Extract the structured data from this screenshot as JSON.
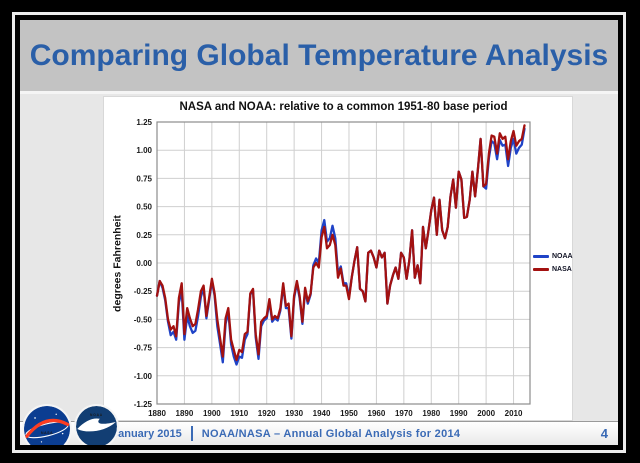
{
  "slide": {
    "title": "Comparing Global Temperature Analysis"
  },
  "footer": {
    "date": "January 2015",
    "divider": "|",
    "text": "NOAA/NASA – Annual  Global  Analysis  for  2014",
    "page": "4"
  },
  "logos": {
    "nasa_text": "NASA",
    "noaa_text": "NOAA"
  },
  "colors": {
    "title_blue": "#2a5fa8",
    "footer_blue": "#3a6ab5",
    "noaa_line": "#1f43c7",
    "nasa_line": "#a31110",
    "grid": "#cfcfcf",
    "plot_border": "#8c8c8c",
    "slide_gray": "#c3c3c3",
    "body_gray": "#e7e7e7"
  },
  "chart_data": {
    "type": "line",
    "title": "NASA and NOAA: relative to a common 1951-80 base period",
    "xlabel": "",
    "ylabel": "degrees Fahrenheit",
    "x_start": 1880,
    "x_end": 2014,
    "xlim": [
      1880,
      2016
    ],
    "ylim": [
      -1.25,
      1.25
    ],
    "x_ticks": [
      1880,
      1890,
      1900,
      1910,
      1920,
      1930,
      1940,
      1950,
      1960,
      1970,
      1980,
      1990,
      2000,
      2010
    ],
    "y_ticks": [
      1.25,
      1.0,
      0.75,
      0.5,
      0.25,
      0.0,
      -0.25,
      -0.5,
      -0.75,
      -1.0,
      -1.25
    ],
    "grid": true,
    "legend_position": "right",
    "series": [
      {
        "name": "NOAA",
        "color": "#1f43c7",
        "values": [
          -0.29,
          -0.16,
          -0.22,
          -0.33,
          -0.52,
          -0.64,
          -0.61,
          -0.68,
          -0.35,
          -0.25,
          -0.68,
          -0.47,
          -0.56,
          -0.62,
          -0.6,
          -0.47,
          -0.3,
          -0.22,
          -0.49,
          -0.33,
          -0.16,
          -0.29,
          -0.56,
          -0.72,
          -0.88,
          -0.54,
          -0.43,
          -0.72,
          -0.83,
          -0.9,
          -0.83,
          -0.84,
          -0.68,
          -0.63,
          -0.28,
          -0.24,
          -0.66,
          -0.85,
          -0.56,
          -0.51,
          -0.49,
          -0.34,
          -0.52,
          -0.49,
          -0.51,
          -0.42,
          -0.2,
          -0.4,
          -0.4,
          -0.67,
          -0.31,
          -0.18,
          -0.31,
          -0.54,
          -0.24,
          -0.36,
          -0.28,
          -0.02,
          0.04,
          0.0,
          0.29,
          0.38,
          0.19,
          0.22,
          0.33,
          0.22,
          -0.09,
          -0.03,
          -0.18,
          -0.18,
          -0.3,
          -0.13,
          0.02,
          0.14,
          -0.23,
          -0.25,
          -0.34,
          0.09,
          0.11,
          0.05,
          -0.04,
          0.11,
          0.05,
          0.09,
          -0.36,
          -0.2,
          -0.11,
          -0.04,
          -0.14,
          0.09,
          0.05,
          -0.14,
          0.02,
          0.29,
          -0.13,
          -0.02,
          -0.18,
          0.32,
          0.13,
          0.29,
          0.47,
          0.58,
          0.25,
          0.56,
          0.29,
          0.22,
          0.32,
          0.59,
          0.74,
          0.49,
          0.81,
          0.74,
          0.4,
          0.41,
          0.56,
          0.81,
          0.59,
          0.83,
          1.1,
          0.68,
          0.66,
          0.93,
          1.08,
          1.06,
          0.92,
          1.09,
          1.04,
          1.05,
          0.86,
          1.02,
          1.1,
          0.97,
          1.02,
          1.05,
          1.19
        ]
      },
      {
        "name": "NASA",
        "color": "#a31110",
        "values": [
          -0.29,
          -0.16,
          -0.2,
          -0.31,
          -0.5,
          -0.59,
          -0.56,
          -0.65,
          -0.31,
          -0.18,
          -0.63,
          -0.4,
          -0.49,
          -0.56,
          -0.54,
          -0.41,
          -0.25,
          -0.2,
          -0.47,
          -0.31,
          -0.14,
          -0.27,
          -0.5,
          -0.67,
          -0.83,
          -0.49,
          -0.4,
          -0.68,
          -0.77,
          -0.86,
          -0.77,
          -0.79,
          -0.63,
          -0.61,
          -0.27,
          -0.23,
          -0.63,
          -0.81,
          -0.52,
          -0.49,
          -0.47,
          -0.32,
          -0.5,
          -0.47,
          -0.49,
          -0.4,
          -0.18,
          -0.38,
          -0.36,
          -0.65,
          -0.29,
          -0.16,
          -0.29,
          -0.52,
          -0.22,
          -0.34,
          -0.27,
          -0.04,
          0.0,
          -0.04,
          0.23,
          0.32,
          0.13,
          0.16,
          0.25,
          0.16,
          -0.13,
          -0.05,
          -0.2,
          -0.2,
          -0.32,
          -0.13,
          0.02,
          0.14,
          -0.23,
          -0.25,
          -0.34,
          0.09,
          0.11,
          0.05,
          -0.04,
          0.11,
          0.05,
          0.09,
          -0.36,
          -0.2,
          -0.11,
          -0.04,
          -0.14,
          0.09,
          0.05,
          -0.14,
          0.02,
          0.29,
          -0.13,
          -0.02,
          -0.18,
          0.32,
          0.13,
          0.29,
          0.47,
          0.58,
          0.25,
          0.56,
          0.29,
          0.22,
          0.32,
          0.59,
          0.74,
          0.49,
          0.81,
          0.74,
          0.4,
          0.41,
          0.56,
          0.81,
          0.59,
          0.83,
          1.1,
          0.68,
          0.7,
          0.97,
          1.13,
          1.12,
          0.97,
          1.15,
          1.1,
          1.12,
          0.92,
          1.08,
          1.17,
          1.04,
          1.08,
          1.1,
          1.22
        ]
      }
    ]
  }
}
